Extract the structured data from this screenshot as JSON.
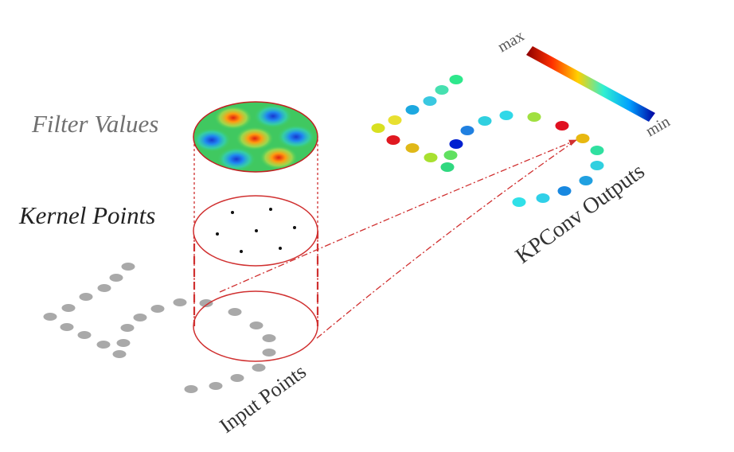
{
  "labels": {
    "filter_values": "Filter Values",
    "kernel_points": "Kernel Points",
    "input_points": "Input Points",
    "kpconv_outputs": "KPConv Outputs"
  },
  "colorbar": {
    "max_label": "max",
    "min_label": "min",
    "stops": [
      "#8b0000",
      "#ff3000",
      "#ffd000",
      "#30f0d0",
      "#00a0ff",
      "#0000a0"
    ]
  },
  "colors": {
    "cylinder": "#d03030",
    "arrow": "#d03030",
    "input_point": "#a9a9a9",
    "kernel_point": "#111111",
    "label_gray": "#707070",
    "label_dark": "#333333"
  },
  "output_point_colors": [
    "#2ee88c",
    "#46e0b0",
    "#3ac8e0",
    "#1ca8e0",
    "#e8e030",
    "#d8e020",
    "#e01820",
    "#e0b818",
    "#a8e030",
    "#30d880",
    "#60e060",
    "#0020d0",
    "#2080e0",
    "#30d0e0",
    "#30d8e8",
    "#a0e040",
    "#e01020",
    "#e8b810",
    "#30e0a0",
    "#30d0e0",
    "#20a0e0",
    "#1888e0",
    "#30d0e8",
    "#30e0e8"
  ]
}
